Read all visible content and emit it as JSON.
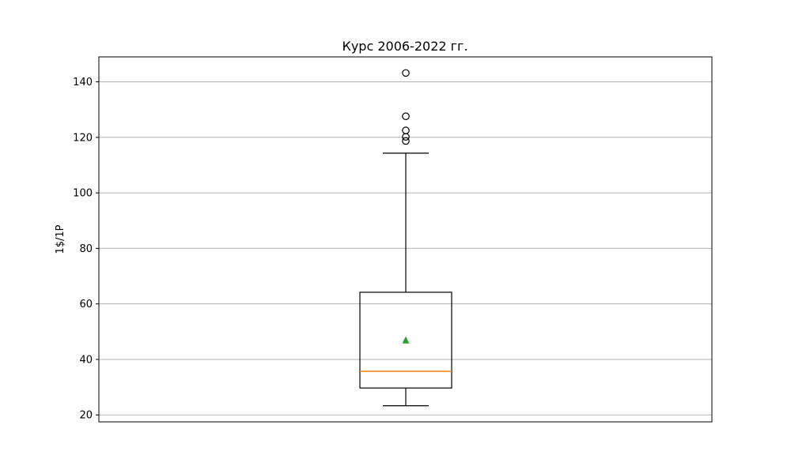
{
  "chart_data": {
    "type": "box",
    "title": "Курс 2006-2022 гг.",
    "xlabel": "",
    "ylabel": "1$/1Р",
    "ylim": [
      17.5,
      149
    ],
    "yticks": [
      20,
      40,
      60,
      80,
      100,
      120,
      140
    ],
    "grid": "y",
    "box": {
      "whisker_low": 23.3,
      "q1": 29.7,
      "median": 35.7,
      "q3": 64.2,
      "whisker_high": 114.3,
      "mean": 46.9,
      "outliers": [
        118.7,
        120.2,
        122.5,
        127.6,
        143.2
      ]
    },
    "colors": {
      "box": "#000000",
      "median": "#ff7f0e",
      "mean": "#2ca02c",
      "grid": "#b0b0b0"
    }
  }
}
